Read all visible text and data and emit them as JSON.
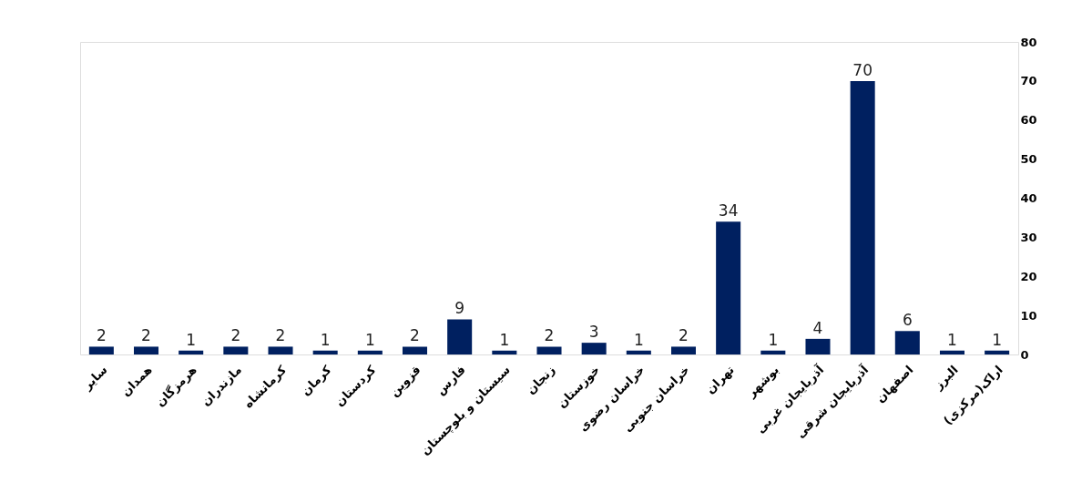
{
  "chart_data": {
    "type": "bar",
    "categories": [
      "سایر",
      "همدان",
      "هرمزگان",
      "مازندران",
      "کرمانشاه",
      "کرمان",
      "کردستان",
      "قزوین",
      "فارس",
      "سیستان و بلوچستان",
      "زنجان",
      "خوزستان",
      "خراسان رضوی",
      "خراسان جنوبی",
      "تهران",
      "بوشهر",
      "آذربایجان غربی",
      "آذربایجان شرقی",
      "اصفهان",
      "البرز",
      "اراک(مرکزی)"
    ],
    "values": [
      2,
      2,
      1,
      2,
      2,
      1,
      1,
      2,
      9,
      1,
      2,
      3,
      1,
      2,
      34,
      1,
      4,
      70,
      6,
      1,
      1
    ],
    "color": "#002060",
    "ylim": [
      0,
      80
    ],
    "yticks": [
      0,
      10,
      20,
      30,
      40,
      50,
      60,
      70,
      80
    ],
    "data_labels": true,
    "grid": false
  }
}
